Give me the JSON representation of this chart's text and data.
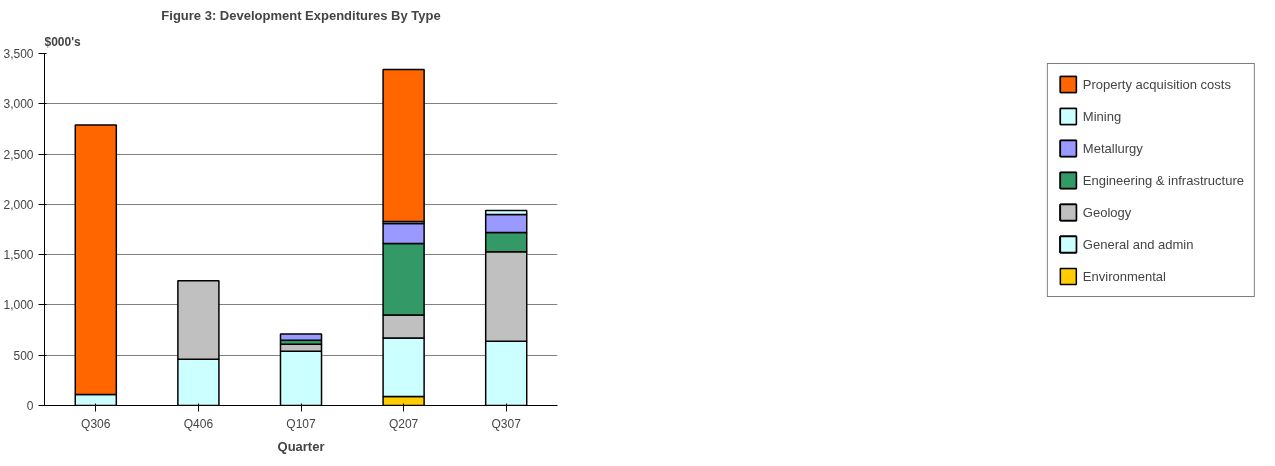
{
  "chart_data": {
    "type": "bar",
    "stacked": true,
    "title": "Figure 3: Development Expenditures By Type",
    "ylabel": "$000's",
    "xlabel": "Quarter",
    "categories": [
      "Q306",
      "Q406",
      "Q107",
      "Q207",
      "Q307"
    ],
    "series": [
      {
        "name": "Environmental",
        "color": "#ffcc00",
        "values": [
          null,
          null,
          null,
          90,
          null
        ]
      },
      {
        "name": "General and admin",
        "color": "#ccffff",
        "values": [
          110,
          460,
          540,
          580,
          640
        ]
      },
      {
        "name": "Geology",
        "color": "#c0c0c0",
        "values": [
          null,
          780,
          70,
          230,
          890
        ]
      },
      {
        "name": "Engineering & infrastructure",
        "color": "#339966",
        "values": [
          null,
          null,
          40,
          710,
          190
        ]
      },
      {
        "name": "Metallurgy",
        "color": "#9999ff",
        "values": [
          null,
          null,
          60,
          200,
          180
        ]
      },
      {
        "name": "Mining",
        "color": "#ccffff",
        "values": [
          null,
          null,
          null,
          20,
          40
        ]
      },
      {
        "name": "Property acquisition costs",
        "color": "#ff6600",
        "values": [
          2680,
          null,
          null,
          1510,
          null
        ]
      }
    ],
    "ylim": [
      0,
      3500
    ],
    "yticks": [
      {
        "value": 0,
        "label": "0"
      },
      {
        "value": 500,
        "label": "500"
      },
      {
        "value": 1000,
        "label": "1,000"
      },
      {
        "value": 1500,
        "label": "1,500"
      },
      {
        "value": 2000,
        "label": "2,000"
      },
      {
        "value": 2500,
        "label": "2,500"
      },
      {
        "value": 3000,
        "label": "3,000"
      },
      {
        "value": 3500,
        "label": "3,500"
      }
    ],
    "grid": "y",
    "legend": "right"
  }
}
